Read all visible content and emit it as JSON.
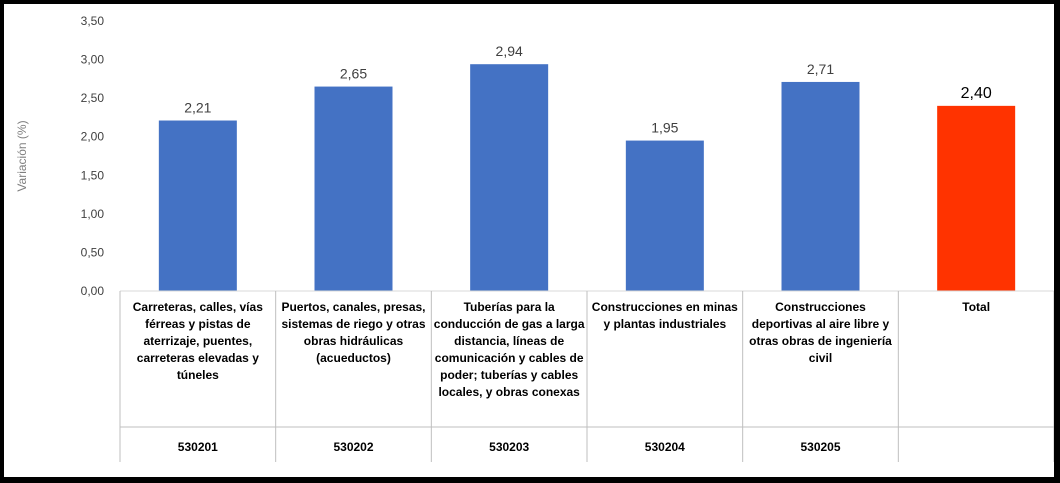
{
  "chart_data": {
    "type": "bar",
    "ylabel": "Variación (%)",
    "ylim": [
      0,
      3.5
    ],
    "yticks": [
      "0,00",
      "0,50",
      "1,00",
      "1,50",
      "2,00",
      "2,50",
      "3,00",
      "3,50"
    ],
    "ytick_values": [
      0,
      0.5,
      1,
      1.5,
      2,
      2.5,
      3,
      3.5
    ],
    "categories": [
      "Carreteras, calles, vías férreas y pistas de aterrizaje, puentes, carreteras elevadas y túneles",
      "Puertos, canales, presas, sistemas de riego y otras obras hidráulicas (acueductos)",
      "Tuberías para la conducción de gas a larga distancia, líneas de comunicación y cables de poder; tuberías y cables locales, y obras conexas",
      "Construcciones  en minas y plantas industriales",
      "Construcciones deportivas al aire libre y otras obras de ingeniería civil",
      "Total"
    ],
    "codes": [
      "530201",
      "530202",
      "530203",
      "530204",
      "530205",
      ""
    ],
    "values": [
      2.21,
      2.65,
      2.94,
      1.95,
      2.71,
      2.4
    ],
    "value_labels": [
      "2,21",
      "2,65",
      "2,94",
      "1,95",
      "2,71",
      "2,40"
    ],
    "colors": [
      "#4472C4",
      "#4472C4",
      "#4472C4",
      "#4472C4",
      "#4472C4",
      "#FF3300"
    ],
    "gridlines": false
  }
}
